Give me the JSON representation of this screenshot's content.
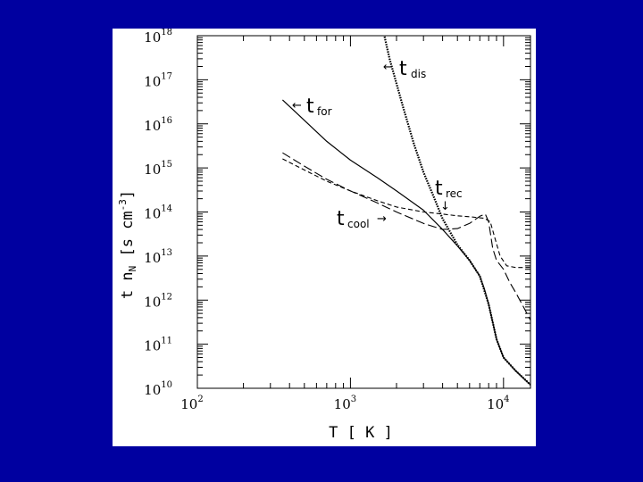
{
  "page": {
    "background": "#0000a0",
    "panel_background": "#ffffff"
  },
  "chart_data": {
    "type": "line",
    "title": "",
    "xlabel": "T [ K ]",
    "ylabel": "t n_N [s cm^-3]",
    "xscale": "log",
    "yscale": "log",
    "xlim": [
      100,
      15000
    ],
    "ylim": [
      10000000000.0,
      1e+18
    ],
    "grid": false,
    "xticks": [
      {
        "base": "10",
        "exp": "2",
        "value": 100
      },
      {
        "base": "10",
        "exp": "3",
        "value": 1000
      },
      {
        "base": "10",
        "exp": "4",
        "value": 10000
      }
    ],
    "yticks": [
      {
        "base": "10",
        "exp": "10",
        "value": 10000000000.0
      },
      {
        "base": "10",
        "exp": "11",
        "value": 100000000000.0
      },
      {
        "base": "10",
        "exp": "12",
        "value": 1000000000000.0
      },
      {
        "base": "10",
        "exp": "13",
        "value": 10000000000000.0
      },
      {
        "base": "10",
        "exp": "14",
        "value": 100000000000000.0
      },
      {
        "base": "10",
        "exp": "15",
        "value": 1000000000000000.0
      },
      {
        "base": "10",
        "exp": "16",
        "value": 1e+16
      },
      {
        "base": "10",
        "exp": "17",
        "value": 1e+17
      },
      {
        "base": "10",
        "exp": "18",
        "value": 1e+18
      }
    ],
    "series": [
      {
        "name": "t_for",
        "style": "solid",
        "points": [
          [
            360,
            3.5e+16
          ],
          [
            500,
            1.2e+16
          ],
          [
            700,
            4000000000000000.0
          ],
          [
            1000,
            1500000000000000.0
          ],
          [
            1500,
            600000000000000.0
          ],
          [
            2000,
            300000000000000.0
          ],
          [
            3000,
            110000000000000.0
          ],
          [
            4000,
            40000000000000.0
          ],
          [
            5000,
            17000000000000.0
          ],
          [
            6000,
            8000000000000.0
          ],
          [
            7000,
            3500000000000.0
          ],
          [
            7500,
            1800000000000.0
          ],
          [
            8000,
            800000000000.0
          ],
          [
            9000,
            130000000000.0
          ],
          [
            10000,
            50000000000.0
          ],
          [
            12000,
            25000000000.0
          ],
          [
            15000,
            12000000000.0
          ]
        ]
      },
      {
        "name": "t_dis",
        "style": "dotted",
        "points": [
          [
            1500,
            5e+18
          ],
          [
            1800,
            3e+17
          ],
          [
            2200,
            2.5e+16
          ],
          [
            2600,
            3500000000000000.0
          ],
          [
            3000,
            800000000000000.0
          ],
          [
            3500,
            220000000000000.0
          ],
          [
            4000,
            70000000000000.0
          ],
          [
            5000,
            18000000000000.0
          ],
          [
            6000,
            8000000000000.0
          ],
          [
            7000,
            3500000000000.0
          ],
          [
            8000,
            800000000000.0
          ],
          [
            9000,
            130000000000.0
          ],
          [
            10000,
            50000000000.0
          ],
          [
            12000,
            25000000000.0
          ],
          [
            15000,
            12000000000.0
          ]
        ]
      },
      {
        "name": "t_rec",
        "style": "dashed",
        "points": [
          [
            360,
            1600000000000000.0
          ],
          [
            500,
            900000000000000.0
          ],
          [
            700,
            500000000000000.0
          ],
          [
            1000,
            300000000000000.0
          ],
          [
            1500,
            180000000000000.0
          ],
          [
            2000,
            130000000000000.0
          ],
          [
            3000,
            100000000000000.0
          ],
          [
            4000,
            90000000000000.0
          ],
          [
            5000,
            82000000000000.0
          ],
          [
            6000,
            78000000000000.0
          ],
          [
            6700,
            75000000000000.0
          ],
          [
            7500,
            72000000000000.0
          ],
          [
            8200,
            60000000000000.0
          ],
          [
            8800,
            25000000000000.0
          ],
          [
            9500,
            10000000000000.0
          ],
          [
            10500,
            6000000000000.0
          ],
          [
            12000,
            5500000000000.0
          ],
          [
            15000,
            5500000000000.0
          ]
        ]
      },
      {
        "name": "t_cool",
        "style": "long-dashed",
        "points": [
          [
            360,
            2200000000000000.0
          ],
          [
            500,
            1100000000000000.0
          ],
          [
            700,
            550000000000000.0
          ],
          [
            1000,
            300000000000000.0
          ],
          [
            1500,
            160000000000000.0
          ],
          [
            2000,
            100000000000000.0
          ],
          [
            3000,
            55000000000000.0
          ],
          [
            4000,
            40000000000000.0
          ],
          [
            5000,
            42000000000000.0
          ],
          [
            6000,
            55000000000000.0
          ],
          [
            7000,
            80000000000000.0
          ],
          [
            7600,
            90000000000000.0
          ],
          [
            8000,
            60000000000000.0
          ],
          [
            8500,
            15000000000000.0
          ],
          [
            9000,
            8000000000000.0
          ],
          [
            10000,
            5000000000000.0
          ],
          [
            11000,
            2500000000000.0
          ],
          [
            12000,
            1500000000000.0
          ],
          [
            13500,
            700000000000.0
          ],
          [
            15000,
            350000000000.0
          ]
        ]
      }
    ],
    "annotations": [
      {
        "id": "t_dis",
        "prefix": "←",
        "main": "t",
        "sub": "dis"
      },
      {
        "id": "t_for",
        "prefix": "←",
        "main": "t",
        "sub": "for"
      },
      {
        "id": "t_rec",
        "main": "t",
        "sub": "rec",
        "below": "↓"
      },
      {
        "id": "t_cool",
        "main": "t",
        "sub": "cool",
        "suffix": "→"
      }
    ]
  }
}
